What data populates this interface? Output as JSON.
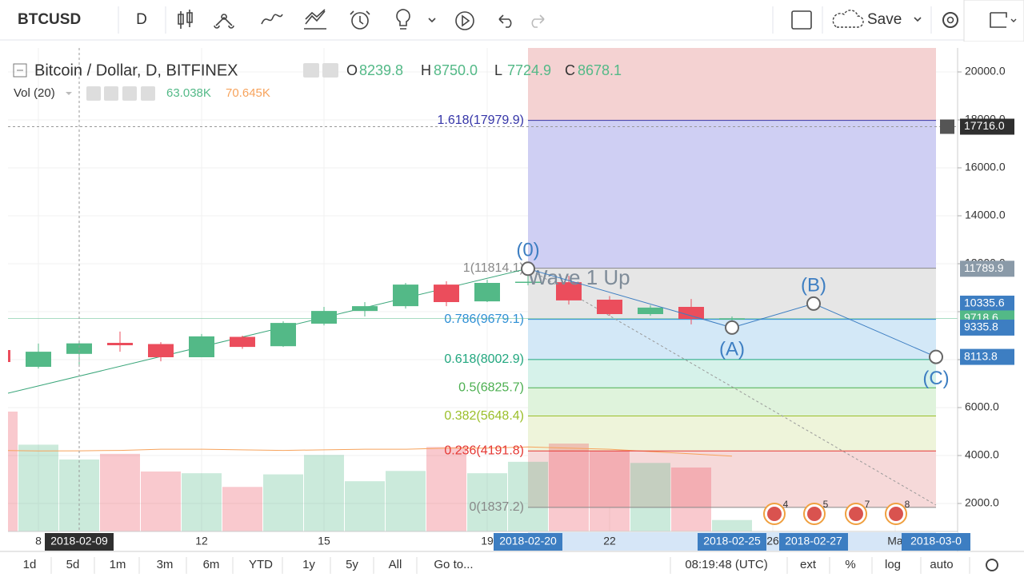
{
  "toolbar": {
    "symbol": "BTCUSD",
    "interval": "D",
    "save": "Save"
  },
  "legend": {
    "title": "Bitcoin / Dollar, D, BITFINEX",
    "ohlc": [
      {
        "key": "O",
        "value": "8239.8"
      },
      {
        "key": "H",
        "value": "8750.0"
      },
      {
        "key": "L",
        "value": "7724.9"
      },
      {
        "key": "C",
        "value": "8678.1"
      }
    ],
    "volume": {
      "title": "Vol (20)",
      "value": "63.038K",
      "ma": "70.645K"
    }
  },
  "chart_data": {
    "type": "candlestick",
    "x": [
      "2018-02-07",
      "2018-02-08",
      "2018-02-09",
      "2018-02-10",
      "2018-02-11",
      "2018-02-12",
      "2018-02-13",
      "2018-02-14",
      "2018-02-15",
      "2018-02-16",
      "2018-02-17",
      "2018-02-18",
      "2018-02-19",
      "2018-02-20",
      "2018-02-21",
      "2018-02-22",
      "2018-02-23",
      "2018-02-24",
      "2018-02-25"
    ],
    "open": [
      8400,
      7700,
      8239.8,
      8700,
      8650,
      8100,
      8950,
      8560,
      9500,
      10030,
      10230,
      11130,
      10430,
      11200,
      11230,
      10500,
      9900,
      10200,
      9670
    ],
    "high": [
      8600,
      8670,
      8750.0,
      9170,
      8730,
      9070,
      9000,
      9600,
      10200,
      10400,
      11200,
      11270,
      11330,
      11800,
      11500,
      10650,
      10270,
      10530,
      9800
    ],
    "low": [
      7800,
      7630,
      7724.9,
      8330,
      7930,
      8100,
      8450,
      8530,
      9430,
      9800,
      10130,
      10230,
      10400,
      11100,
      10300,
      9830,
      9830,
      9470,
      9570
    ],
    "close": [
      7900,
      8330,
      8678.1,
      8600,
      8100,
      8970,
      8530,
      9530,
      10030,
      10230,
      11130,
      10400,
      11200,
      11250,
      10470,
      9900,
      10170,
      9700,
      9718.6
    ],
    "volume": [
      105,
      76,
      63.038,
      68,
      52.5,
      51,
      39,
      50,
      67,
      44,
      53,
      74,
      51,
      61,
      77,
      71,
      60,
      56,
      10
    ],
    "volume_ma": [
      71,
      70.5,
      70.645,
      71,
      72,
      72,
      71.5,
      71,
      71.5,
      72,
      72,
      73,
      73,
      74,
      73,
      72,
      70,
      68,
      66
    ],
    "volume_ylim": [
      0,
      423.5
    ],
    "up_color": "#53b987",
    "down_color": "#eb4d5c",
    "ma_color": "#f7a35c",
    "ylim": [
      833.3,
      21000
    ],
    "yticks": [
      {
        "value": 2000,
        "label": "2000.0"
      },
      {
        "value": 4000,
        "label": "4000.0"
      },
      {
        "value": 6000,
        "label": "6000.0"
      },
      {
        "value": 8000,
        "label": "8000.0"
      },
      {
        "value": 10000,
        "label": "10000.0"
      },
      {
        "value": 12000,
        "label": "12000.0"
      },
      {
        "value": 14000,
        "label": "14000.0"
      },
      {
        "value": 16000,
        "label": "16000.0"
      },
      {
        "value": 18000,
        "label": "18000.0"
      },
      {
        "value": 20000,
        "label": "20000.0"
      }
    ],
    "xticks": [
      {
        "value": "2018-02-08",
        "label": "8"
      },
      {
        "value": "2018-02-12",
        "label": "12"
      },
      {
        "value": "2018-02-15",
        "label": "15"
      },
      {
        "value": "2018-02-19",
        "label": "19"
      },
      {
        "value": "2018-02-22",
        "label": "22"
      },
      {
        "value": "2018-02-26",
        "label": "26"
      },
      {
        "value": "2018-03-01",
        "label": "Ma"
      }
    ],
    "x_markers": [
      {
        "value": "2018-02-09",
        "label": "2018-02-09",
        "color": "#2f2f2f"
      },
      {
        "value": "2018-02-20",
        "label": "2018-02-20",
        "color": "#3d7ec2"
      },
      {
        "value": "2018-02-25",
        "label": "2018-02-25",
        "color": "#3d7ec2"
      },
      {
        "value": "2018-02-27",
        "label": "2018-02-27",
        "color": "#3d7ec2"
      },
      {
        "value": "2018-03-02",
        "label": "2018-03-0",
        "color": "#3d7ec2"
      }
    ],
    "price_labels": [
      {
        "value": 17716,
        "label": "17716.0",
        "color": "#2f2f2f"
      },
      {
        "value": 11789.9,
        "label": "11789.9",
        "color": "#8a9aa8"
      },
      {
        "value": 10335.6,
        "label": "10335.6",
        "color": "#3d7ec2"
      },
      {
        "value": 9718.6,
        "label": "9718.6",
        "color": "#53b987"
      },
      {
        "value": 9335.8,
        "label": "9335.8",
        "color": "#3d7ec2"
      },
      {
        "value": 8113.8,
        "label": "8113.8",
        "color": "#3d7ec2"
      }
    ],
    "fib": {
      "start": "2018-02-20",
      "end": "2018-03-02",
      "levels": [
        {
          "value": 17979.9,
          "label": "1.618(17979.9)",
          "color": "#3535a8",
          "fill": "#cfcff3"
        },
        {
          "value": 11814.1,
          "label": "1(11814.1)",
          "color": "#888888",
          "fill": "#e6e6e6"
        },
        {
          "value": 9679.1,
          "label": "0.786(9679.1)",
          "color": "#2d8fd5",
          "fill": "#d3e8f7"
        },
        {
          "value": 8002.9,
          "label": "0.618(8002.9)",
          "color": "#22a77f",
          "fill": "#d6f2ea"
        },
        {
          "value": 6825.7,
          "label": "0.5(6825.7)",
          "color": "#4caf50",
          "fill": "#dff3dc"
        },
        {
          "value": 5648.4,
          "label": "0.382(5648.4)",
          "color": "#9bbf2a",
          "fill": "#eef4da"
        },
        {
          "value": 4191.8,
          "label": "0.236(4191.8)",
          "color": "#e53935",
          "fill": "#f6d9d9"
        },
        {
          "value": 1837.2,
          "label": "0(1837.2)",
          "color": "#888888"
        }
      ]
    },
    "waves": [
      {
        "label": "(0)",
        "x": "2018-02-20",
        "value": 11789.9
      },
      {
        "label": "(A)",
        "x": "2018-02-25",
        "value": 9335.8
      },
      {
        "label": "(B)",
        "x": "2018-02-27",
        "value": 10335.6
      },
      {
        "label": "(C)",
        "x": "2018-03-02",
        "value": 8113.8
      }
    ],
    "wave_color": "#3d7ec2",
    "annotation": "Wave 1 Up",
    "crosshair": {
      "x": "2018-02-09",
      "y": 17716
    }
  },
  "events": [
    "4",
    "5",
    "7",
    "8"
  ],
  "footer": {
    "ranges": [
      "1d",
      "5d",
      "1m",
      "3m",
      "6m",
      "YTD",
      "1y",
      "5y",
      "All"
    ],
    "goto": "Go to...",
    "time": "08:19:48 (UTC)",
    "options": [
      "ext",
      "%",
      "log",
      "auto"
    ]
  }
}
